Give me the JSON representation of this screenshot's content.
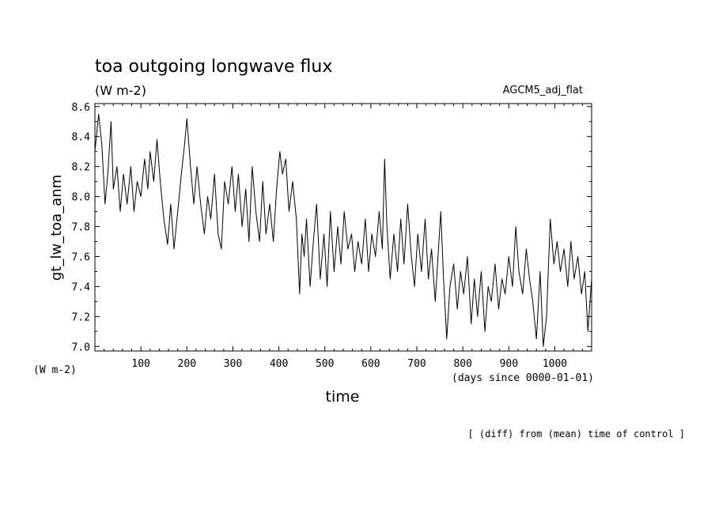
{
  "chart_data": {
    "type": "line",
    "title": "toa outgoing longwave flux",
    "units": "(W m-2)",
    "run_label": "AGCM5_adj_flat",
    "ylabel": "gt_lw_toa_anm",
    "y_units_label": "(W m-2)",
    "xlabel": "time",
    "x_units_label": "(days since 0000-01-01)",
    "footnote": "[ (diff) from (mean) time of control ]",
    "xlim": [
      0,
      1080
    ],
    "ylim": [
      6.97,
      8.62
    ],
    "x_ticks": [
      100,
      200,
      300,
      400,
      500,
      600,
      700,
      800,
      900,
      1000
    ],
    "y_ticks": [
      7.0,
      7.2,
      7.4,
      7.6,
      7.8,
      8.0,
      8.2,
      8.4,
      8.6
    ],
    "y_tick_labels": [
      "7.0",
      "7.2",
      "7.4",
      "7.6",
      "7.8",
      "8.0",
      "8.2",
      "8.4",
      "8.6"
    ],
    "series": [
      {
        "name": "gt_lw_toa_anm",
        "x": [
          0,
          8,
          15,
          22,
          28,
          35,
          40,
          48,
          55,
          62,
          70,
          78,
          85,
          92,
          100,
          108,
          115,
          120,
          128,
          135,
          142,
          150,
          158,
          165,
          172,
          180,
          188,
          195,
          200,
          208,
          215,
          222,
          230,
          238,
          245,
          252,
          260,
          268,
          275,
          282,
          290,
          298,
          305,
          312,
          320,
          328,
          335,
          342,
          350,
          358,
          365,
          372,
          380,
          388,
          395,
          402,
          408,
          415,
          422,
          430,
          438,
          445,
          450,
          455,
          460,
          468,
          475,
          482,
          490,
          498,
          505,
          512,
          520,
          528,
          535,
          542,
          550,
          558,
          565,
          572,
          580,
          588,
          595,
          602,
          610,
          618,
          625,
          630,
          635,
          642,
          650,
          658,
          665,
          672,
          680,
          688,
          695,
          702,
          710,
          718,
          725,
          732,
          740,
          745,
          752,
          758,
          765,
          772,
          780,
          788,
          795,
          802,
          810,
          818,
          825,
          832,
          840,
          848,
          855,
          862,
          870,
          878,
          885,
          892,
          900,
          908,
          915,
          922,
          930,
          938,
          945,
          952,
          960,
          968,
          975,
          982,
          990,
          998,
          1005,
          1012,
          1020,
          1028,
          1035,
          1042,
          1050,
          1058,
          1065,
          1072,
          1080
        ],
        "values": [
          8.3,
          8.55,
          8.35,
          7.95,
          8.15,
          8.5,
          8.05,
          8.2,
          7.9,
          8.15,
          7.95,
          8.2,
          7.9,
          8.1,
          8.0,
          8.25,
          8.05,
          8.3,
          8.1,
          8.38,
          8.1,
          7.85,
          7.68,
          7.95,
          7.65,
          7.9,
          8.15,
          8.35,
          8.52,
          8.2,
          7.95,
          8.2,
          7.95,
          7.75,
          8.0,
          7.85,
          8.15,
          7.75,
          7.65,
          8.1,
          7.95,
          8.2,
          7.9,
          8.15,
          7.8,
          8.05,
          7.7,
          8.2,
          7.9,
          7.7,
          8.1,
          7.75,
          7.95,
          7.7,
          8.05,
          8.3,
          8.15,
          8.25,
          7.9,
          8.1,
          7.85,
          7.35,
          7.75,
          7.6,
          7.85,
          7.4,
          7.7,
          7.95,
          7.45,
          7.75,
          7.4,
          7.9,
          7.5,
          7.8,
          7.55,
          7.9,
          7.65,
          7.75,
          7.5,
          7.7,
          7.55,
          7.85,
          7.5,
          7.75,
          7.6,
          7.9,
          7.65,
          8.25,
          7.8,
          7.45,
          7.75,
          7.5,
          7.85,
          7.55,
          7.95,
          7.6,
          7.4,
          7.75,
          7.5,
          7.85,
          7.45,
          7.65,
          7.3,
          7.55,
          7.9,
          7.45,
          7.05,
          7.4,
          7.55,
          7.25,
          7.5,
          7.35,
          7.6,
          7.15,
          7.45,
          7.2,
          7.5,
          7.1,
          7.4,
          7.3,
          7.55,
          7.25,
          7.45,
          7.35,
          7.6,
          7.4,
          7.8,
          7.5,
          7.35,
          7.65,
          7.45,
          7.3,
          7.05,
          7.5,
          7.0,
          7.2,
          7.85,
          7.55,
          7.7,
          7.5,
          7.65,
          7.4,
          7.7,
          7.45,
          7.6,
          7.35,
          7.5,
          7.1,
          7.45
        ]
      }
    ]
  }
}
